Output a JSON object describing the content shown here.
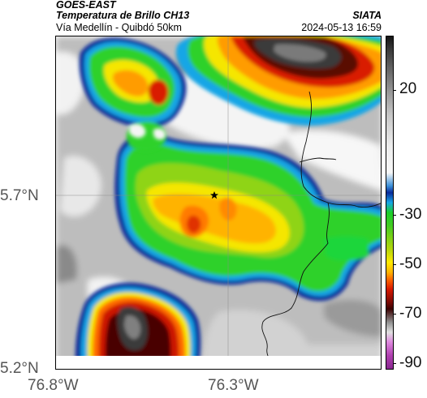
{
  "header": {
    "source": "GOES-EAST",
    "product": "Temperatura de Brillo CH13",
    "route": "Vía Medellín - Quibdó 50km",
    "agency": "SIATA",
    "timestamp": "2024-05-13 16:59"
  },
  "axes": {
    "lat_labels": [
      "5.7°N",
      "5.2°N"
    ],
    "lon_labels": [
      "76.8°W",
      "76.3°W"
    ]
  },
  "colorbar": {
    "ticks": [
      "20",
      "-30",
      "-50",
      "-70",
      "-90"
    ],
    "values": [
      20,
      -30,
      -50,
      -70,
      -90
    ]
  },
  "marker": {
    "icon": "star-icon"
  },
  "colors": {
    "cold_core": "#151515",
    "very_cold": "#7a0a05",
    "cold": "#d91a00",
    "warm_orange": "#ff9c00",
    "yellow": "#f5e600",
    "green": "#2fd12a",
    "cyan": "#18a6e6",
    "dark_blue": "#0a2a9a",
    "clear": "#f4f4f4",
    "gray": "#b8b8b8"
  }
}
